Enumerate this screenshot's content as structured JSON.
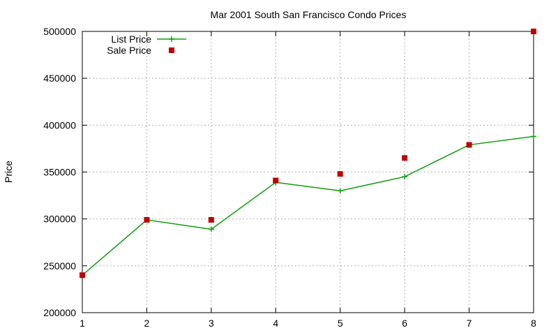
{
  "chart_data": {
    "type": "line",
    "title": "Mar 2001 South San Francisco Condo Prices",
    "xlabel": "",
    "ylabel": "Price",
    "xlim": [
      1,
      8
    ],
    "ylim": [
      200000,
      500000
    ],
    "x_ticks": [
      "1",
      "2",
      "3",
      "4",
      "5",
      "6",
      "7",
      "8"
    ],
    "y_ticks": [
      "200000",
      "250000",
      "300000",
      "350000",
      "400000",
      "450000",
      "500000"
    ],
    "grid": true,
    "legend_position": "top-left",
    "series": [
      {
        "name": "List Price",
        "style": "line-with-plus-markers",
        "color": "#0ba00b",
        "x": [
          1,
          2,
          3,
          4,
          5,
          6,
          7,
          8
        ],
        "values": [
          240000,
          299000,
          289000,
          339000,
          330000,
          345000,
          379000,
          388000
        ]
      },
      {
        "name": "Sale Price",
        "style": "square-markers",
        "color": "#c00000",
        "x": [
          1,
          2,
          3,
          4,
          5,
          6,
          7,
          8
        ],
        "values": [
          240000,
          299000,
          299000,
          341000,
          348000,
          365000,
          379000,
          500000
        ]
      }
    ]
  }
}
